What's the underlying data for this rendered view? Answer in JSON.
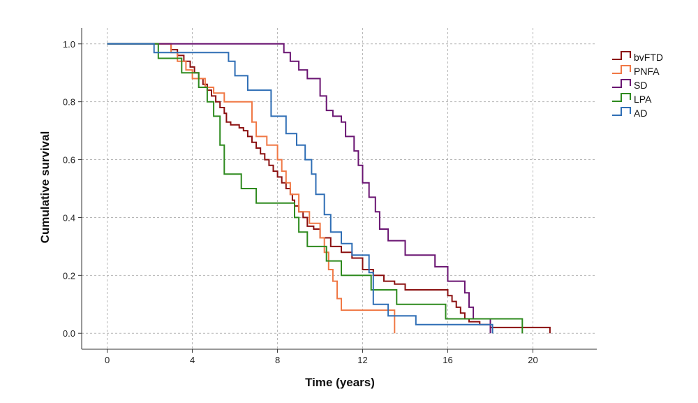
{
  "chart_data": {
    "type": "line",
    "step": true,
    "title": "",
    "xlabel": "Time (years)",
    "ylabel": "Cumulative survival",
    "xlim": [
      -1.2,
      23
    ],
    "ylim": [
      -0.055,
      1.055
    ],
    "xticks": [
      0,
      4,
      8,
      12,
      16,
      20
    ],
    "yticks": [
      0.0,
      0.2,
      0.4,
      0.6,
      0.8,
      1.0
    ],
    "xtick_labels": [
      "0",
      "4",
      "8",
      "12",
      "16",
      "20"
    ],
    "ytick_labels": [
      "0.0",
      "0.2",
      "0.4",
      "0.6",
      "0.8",
      "1.0"
    ],
    "grid": true,
    "legend_position": "top-right",
    "series": [
      {
        "name": "bvFTD",
        "color": "#8b1010",
        "x": [
          0,
          3.0,
          3.3,
          3.6,
          3.9,
          4.1,
          4.3,
          4.5,
          4.7,
          4.9,
          5.1,
          5.3,
          5.5,
          5.6,
          5.8,
          6.0,
          6.2,
          6.4,
          6.6,
          6.8,
          7.0,
          7.2,
          7.4,
          7.6,
          7.8,
          8.0,
          8.2,
          8.4,
          8.6,
          8.7,
          8.8,
          9.0,
          9.2,
          9.4,
          9.7,
          10.0,
          10.5,
          11.0,
          11.5,
          12.0,
          12.5,
          13.0,
          13.5,
          14.0,
          16.0,
          16.2,
          16.4,
          16.6,
          16.8,
          17.0,
          17.5,
          18.0,
          20.8
        ],
        "y": [
          1.0,
          0.98,
          0.96,
          0.94,
          0.92,
          0.9,
          0.88,
          0.86,
          0.84,
          0.82,
          0.8,
          0.78,
          0.76,
          0.73,
          0.72,
          0.72,
          0.71,
          0.7,
          0.68,
          0.66,
          0.64,
          0.62,
          0.6,
          0.58,
          0.56,
          0.54,
          0.52,
          0.5,
          0.48,
          0.46,
          0.44,
          0.42,
          0.4,
          0.37,
          0.36,
          0.33,
          0.3,
          0.28,
          0.26,
          0.22,
          0.2,
          0.18,
          0.17,
          0.15,
          0.13,
          0.11,
          0.09,
          0.07,
          0.05,
          0.04,
          0.03,
          0.02,
          0.0
        ]
      },
      {
        "name": "PNFA",
        "color": "#f07845",
        "x": [
          0,
          3.0,
          3.3,
          3.7,
          4.0,
          4.6,
          5.0,
          5.5,
          6.0,
          6.8,
          7.0,
          7.5,
          8.0,
          8.2,
          8.4,
          8.6,
          9.0,
          9.5,
          10.0,
          10.2,
          10.4,
          10.6,
          10.8,
          11.0,
          13.5
        ],
        "y": [
          1.0,
          0.97,
          0.94,
          0.91,
          0.88,
          0.85,
          0.83,
          0.8,
          0.8,
          0.73,
          0.68,
          0.65,
          0.6,
          0.56,
          0.52,
          0.48,
          0.42,
          0.38,
          0.33,
          0.28,
          0.22,
          0.18,
          0.12,
          0.08,
          0.0
        ]
      },
      {
        "name": "SD",
        "color": "#6a1572",
        "x": [
          0,
          8.3,
          8.6,
          9.0,
          9.4,
          10.0,
          10.3,
          10.6,
          11.0,
          11.2,
          11.6,
          11.8,
          12.0,
          12.3,
          12.6,
          12.8,
          13.2,
          14.0,
          15.0,
          15.4,
          16.0,
          16.8,
          17.0,
          17.2,
          18.0
        ],
        "y": [
          1.0,
          0.97,
          0.94,
          0.91,
          0.88,
          0.82,
          0.77,
          0.75,
          0.73,
          0.68,
          0.63,
          0.58,
          0.52,
          0.47,
          0.42,
          0.36,
          0.32,
          0.27,
          0.27,
          0.23,
          0.18,
          0.14,
          0.09,
          0.05,
          0.0
        ]
      },
      {
        "name": "LPA",
        "color": "#2e8a1e",
        "x": [
          0,
          2.4,
          3.5,
          4.3,
          4.7,
          5.0,
          5.3,
          5.5,
          6.3,
          7.0,
          8.8,
          9.0,
          9.4,
          10.3,
          11.0,
          12.4,
          13.6,
          15.9,
          19.5
        ],
        "y": [
          1.0,
          0.95,
          0.9,
          0.85,
          0.8,
          0.75,
          0.65,
          0.55,
          0.5,
          0.45,
          0.4,
          0.35,
          0.3,
          0.25,
          0.2,
          0.15,
          0.1,
          0.05,
          0.0
        ]
      },
      {
        "name": "AD",
        "color": "#2f6eb5",
        "x": [
          0,
          2.2,
          2.8,
          5.7,
          6.0,
          6.6,
          7.0,
          7.7,
          8.4,
          8.9,
          9.3,
          9.6,
          9.8,
          10.2,
          10.5,
          11.0,
          11.5,
          12.3,
          12.5,
          13.2,
          14.5,
          18.1
        ],
        "y": [
          1.0,
          0.97,
          0.97,
          0.94,
          0.89,
          0.84,
          0.84,
          0.75,
          0.69,
          0.65,
          0.6,
          0.55,
          0.48,
          0.41,
          0.35,
          0.31,
          0.27,
          0.21,
          0.1,
          0.06,
          0.03,
          0.0
        ]
      }
    ]
  }
}
